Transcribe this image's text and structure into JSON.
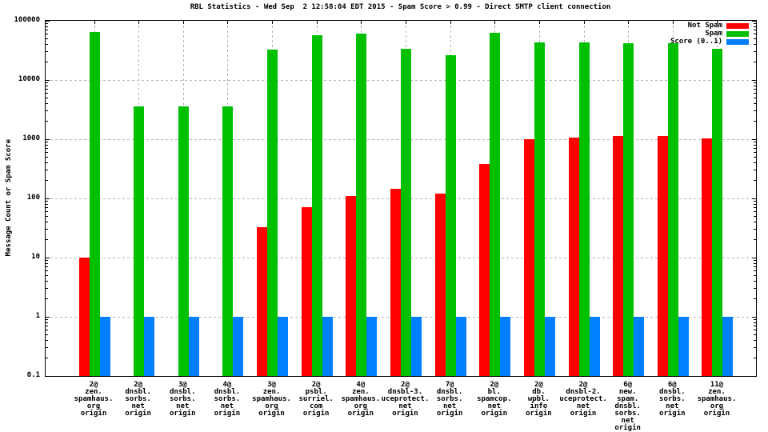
{
  "chart_data": {
    "type": "bar",
    "scale": "log-y",
    "title": "RBL Statistics - Wed Sep  2 12:58:04 EDT 2015 - Spam Score > 0.99 - Direct SMTP client connection",
    "xlabel": "",
    "ylabel": "Message Count or Spam Score",
    "ylim": [
      0.1,
      100000
    ],
    "ytick_labels": [
      "100000",
      "10000",
      "1000",
      "100",
      "10",
      "1",
      "0.1"
    ],
    "ytick_values": [
      100000,
      10000,
      1000,
      100,
      10,
      1,
      0.1
    ],
    "grid": true,
    "legend_position": "top-right",
    "categories": [
      [
        "2@",
        "zen.",
        "spamhaus.",
        "org",
        "origin"
      ],
      [
        "2@",
        "dnsbl.",
        "sorbs.",
        "net",
        "origin"
      ],
      [
        "3@",
        "dnsbl.",
        "sorbs.",
        "net",
        "origin"
      ],
      [
        "4@",
        "dnsbl.",
        "sorbs.",
        "net",
        "origin"
      ],
      [
        "3@",
        "zen.",
        "spamhaus.",
        "org",
        "origin"
      ],
      [
        "2@",
        "psbl.",
        "surriel.",
        "com",
        "origin"
      ],
      [
        "4@",
        "zen.",
        "spamhaus.",
        "org",
        "origin"
      ],
      [
        "2@",
        "dnsbl-3.",
        "uceprotect.",
        "net",
        "origin"
      ],
      [
        "7@",
        "dnsbl.",
        "sorbs.",
        "net",
        "origin"
      ],
      [
        "2@",
        "bl.",
        "spamcop.",
        "net",
        "origin"
      ],
      [
        "2@",
        "db.",
        "wpbl.",
        "info",
        "origin"
      ],
      [
        "2@",
        "dnsbl-2.",
        "uceprotect.",
        "net",
        "origin"
      ],
      [
        "6@",
        "new.",
        "spam.",
        "dnsbl.",
        "sorbs.",
        "net",
        "origin"
      ],
      [
        "6@",
        "dnsbl.",
        "sorbs.",
        "net",
        "origin"
      ],
      [
        "11@",
        "zen.",
        "spamhaus.",
        "org",
        "origin"
      ]
    ],
    "series": [
      {
        "name": "Not Spam",
        "color": "#ff0000",
        "values": [
          10,
          0,
          0,
          0,
          33,
          70,
          110,
          145,
          120,
          380,
          1000,
          1070,
          1140,
          1140,
          1020
        ]
      },
      {
        "name": "Spam",
        "color": "#00c000",
        "values": [
          65000,
          3600,
          3600,
          3600,
          33000,
          58000,
          61000,
          34000,
          26000,
          63000,
          43000,
          43000,
          42000,
          42000,
          34000
        ]
      },
      {
        "name": "Score (0..1)",
        "color": "#0080ff",
        "values": [
          1,
          1,
          1,
          1,
          1,
          1,
          1,
          1,
          1,
          1,
          1,
          1,
          1,
          1,
          1
        ]
      }
    ],
    "colors": {
      "axis": "#000000",
      "grid": "#b4b4b4",
      "background": "#ffffff"
    }
  }
}
